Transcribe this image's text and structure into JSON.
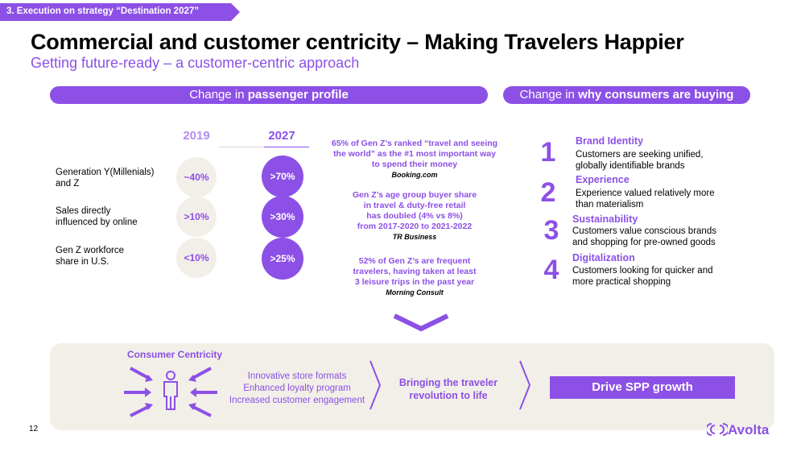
{
  "header": {
    "section_tag": "3. Execution on strategy “Destination 2027”",
    "title": "Commercial and customer centricity – Making Travelers Happier",
    "subtitle": "Getting future-ready – a customer-centric approach"
  },
  "passenger_profile": {
    "pill_prefix": "Change in ",
    "pill_bold": "passenger profile",
    "years": [
      "2019",
      "2027"
    ],
    "rows": [
      {
        "label_line1": "Generation Y(Millenials)",
        "label_line2": "and Z",
        "v2019": "~40%",
        "v2027": ">70%"
      },
      {
        "label_line1": "Sales directly",
        "label_line2": "influenced by online",
        "v2019": ">10%",
        "v2027": ">30%"
      },
      {
        "label_line1": "Gen Z workforce",
        "label_line2": "share in U.S.",
        "v2019": "<10%",
        "v2027": ">25%"
      }
    ]
  },
  "stats": [
    {
      "line1": "65% of Gen Z’s ranked “travel and seeing",
      "line2": "the world” as the #1 most important way",
      "line3": "to spend their money",
      "source": "Booking.com"
    },
    {
      "line1": "Gen Z’s age group buyer share",
      "line2": "in travel & duty-free retail",
      "line3": "has doubled (4% vs 8%)",
      "line4": "from 2017-2020 to 2021-2022",
      "source": "TR Business"
    },
    {
      "line1": "52% of Gen Z’s are frequent",
      "line2": "travelers, having taken at least",
      "line3": "3 leisure trips in the past year",
      "source": "Morning Consult"
    }
  ],
  "consumers": {
    "pill_prefix": "Change in ",
    "pill_bold": "why consumers are buying",
    "items": [
      {
        "num": "1",
        "title": "Brand Identity",
        "line1": "Customers are seeking unified,",
        "line2": "globally identifiable brands"
      },
      {
        "num": "2",
        "title": "Experience",
        "line1": "Experience valued relatively more",
        "line2": "than materialism"
      },
      {
        "num": "3",
        "title": "Sustainability",
        "line1": "Customers value conscious brands",
        "line2": "and shopping for pre-owned goods"
      },
      {
        "num": "4",
        "title": "Digitalization",
        "line1": "Customers looking for quicker and",
        "line2": "more practical shopping"
      }
    ]
  },
  "bottom": {
    "cc_title": "Consumer Centricity",
    "initiatives": [
      "Innovative store formats",
      "Enhanced loyalty program",
      "Increased customer engagement"
    ],
    "bringing_line1": "Bringing the traveler",
    "bringing_line2": "revolution to life",
    "drive": "Drive SPP growth"
  },
  "footer": {
    "page_number": "12",
    "logo": "Avolta"
  },
  "colors": {
    "accent": "#8c50e6",
    "panel": "#f2efe8"
  }
}
